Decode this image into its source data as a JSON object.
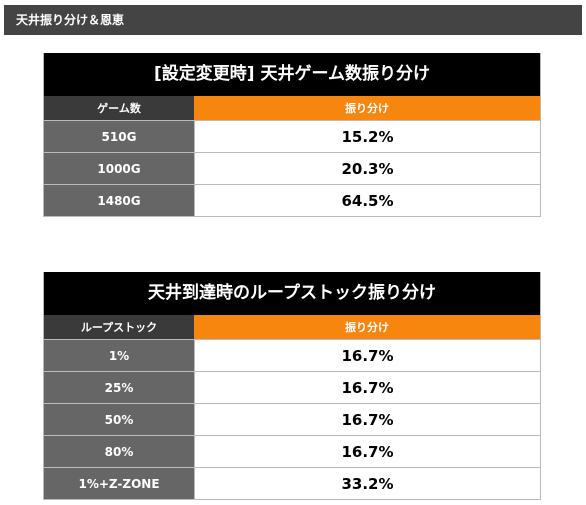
{
  "header": {
    "title": "天井振り分け＆恩恵"
  },
  "tables": [
    {
      "title": "[設定変更時] 天井ゲーム数振り分け",
      "columns": [
        "ゲーム数",
        "振り分け"
      ],
      "rows": [
        [
          "510G",
          "15.2%"
        ],
        [
          "1000G",
          "20.3%"
        ],
        [
          "1480G",
          "64.5%"
        ]
      ]
    },
    {
      "title": "天井到達時のループストック振り分け",
      "columns": [
        "ループストック",
        "振り分け"
      ],
      "rows": [
        [
          "1%",
          "16.7%"
        ],
        [
          "25%",
          "16.7%"
        ],
        [
          "50%",
          "16.7%"
        ],
        [
          "80%",
          "16.7%"
        ],
        [
          "1%+Z-ZONE",
          "33.2%"
        ]
      ]
    }
  ]
}
